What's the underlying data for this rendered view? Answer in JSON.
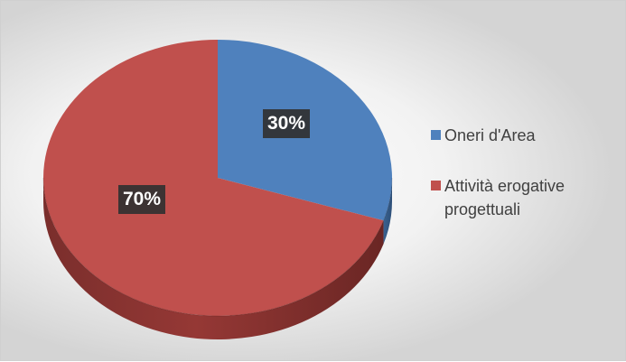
{
  "chart_data": {
    "type": "pie",
    "title": "",
    "categories": [
      "Oneri d'Area",
      "Attività erogative progettuali"
    ],
    "values": [
      30,
      70
    ],
    "data_labels": [
      "30%",
      "70%"
    ],
    "colors": [
      "#4f81bd",
      "#c0504d"
    ],
    "legend_position": "right",
    "style": "3d"
  }
}
